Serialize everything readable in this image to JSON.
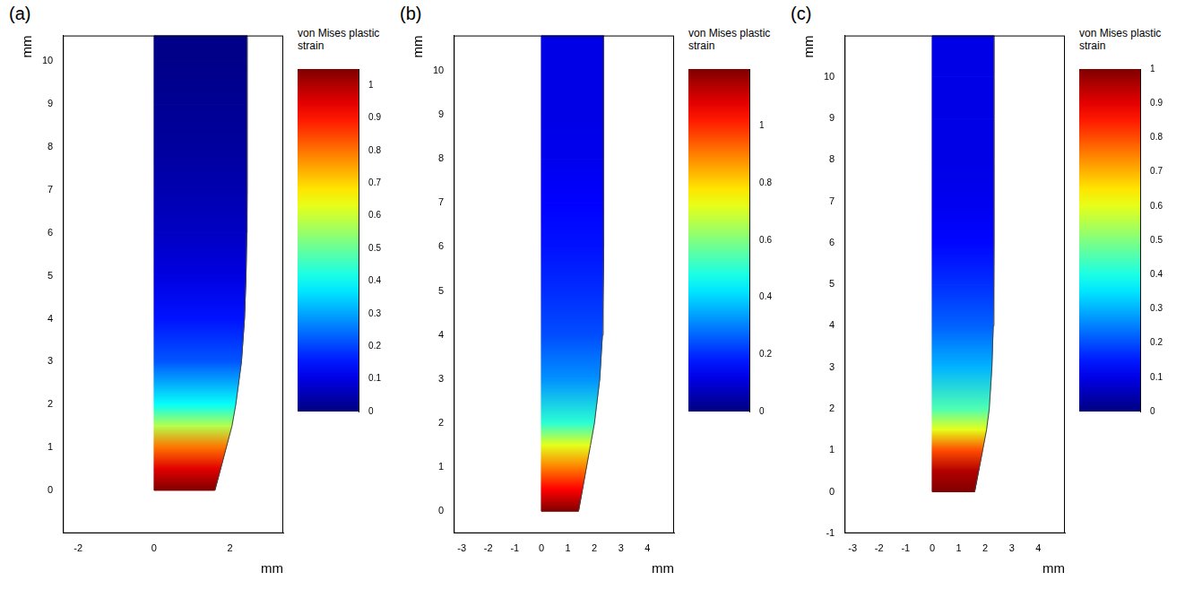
{
  "chart_data": [
    {
      "type": "contour",
      "title": "(a)",
      "x_label": "mm",
      "y_label": "mm",
      "xlim": [
        -2.4,
        3.4
      ],
      "xticks": [
        -2,
        0,
        2
      ],
      "ylim": [
        -1,
        10.6
      ],
      "yticks": [
        0,
        1,
        2,
        3,
        4,
        5,
        6,
        7,
        8,
        9,
        10
      ],
      "profile": {
        "y": [
          0,
          0.5,
          1,
          1.5,
          2,
          3,
          4,
          5,
          6,
          7,
          8,
          9,
          10,
          10.6
        ],
        "x": [
          1.6,
          1.75,
          1.9,
          2.05,
          2.15,
          2.3,
          2.38,
          2.42,
          2.44,
          2.45,
          2.45,
          2.45,
          2.45,
          2.45
        ]
      },
      "strain": [
        1.05,
        0.95,
        0.8,
        0.58,
        0.4,
        0.22,
        0.15,
        0.1,
        0.07,
        0.05,
        0.03,
        0.02,
        0.01,
        0.01
      ],
      "colorbar": {
        "title": "von Mises plastic strain",
        "range": [
          0,
          1.05
        ],
        "ticks": [
          0,
          0.1,
          0.2,
          0.3,
          0.4,
          0.5,
          0.6,
          0.7,
          0.8,
          0.9,
          1
        ]
      }
    },
    {
      "type": "contour",
      "title": "(b)",
      "x_label": "mm",
      "y_label": "mm",
      "xlim": [
        -3.3,
        5
      ],
      "xticks": [
        -3,
        -2,
        -1,
        0,
        1,
        2,
        3,
        4
      ],
      "ylim": [
        -0.5,
        10.8
      ],
      "yticks": [
        0,
        1,
        2,
        3,
        4,
        5,
        6,
        7,
        8,
        9,
        10
      ],
      "profile": {
        "y": [
          0,
          0.5,
          1,
          1.5,
          2,
          3,
          4,
          5,
          6,
          7,
          8,
          9,
          10,
          10.8
        ],
        "x": [
          1.4,
          1.55,
          1.7,
          1.85,
          2.0,
          2.2,
          2.3,
          2.33,
          2.35,
          2.35,
          2.35,
          2.35,
          2.35,
          2.35
        ]
      },
      "strain": [
        1.2,
        1.05,
        0.9,
        0.72,
        0.5,
        0.32,
        0.24,
        0.2,
        0.17,
        0.15,
        0.13,
        0.12,
        0.12,
        0.12
      ],
      "colorbar": {
        "title": "von Mises plastic strain",
        "range": [
          0,
          1.2
        ],
        "ticks": [
          0,
          0.2,
          0.4,
          0.6,
          0.8,
          1
        ]
      }
    },
    {
      "type": "contour",
      "title": "(c)",
      "x_label": "mm",
      "y_label": "mm",
      "xlim": [
        -3.3,
        5
      ],
      "xticks": [
        -3,
        -2,
        -1,
        0,
        1,
        2,
        3,
        4
      ],
      "ylim": [
        -1,
        11
      ],
      "yticks": [
        -1,
        0,
        1,
        2,
        3,
        4,
        5,
        6,
        7,
        8,
        9,
        10
      ],
      "profile": {
        "y": [
          0,
          0.5,
          1,
          1.5,
          2,
          3,
          4,
          5,
          6,
          7,
          8,
          9,
          10,
          11
        ],
        "x": [
          1.6,
          1.75,
          1.9,
          2.05,
          2.15,
          2.25,
          2.3,
          2.32,
          2.33,
          2.33,
          2.33,
          2.33,
          2.33,
          2.33
        ]
      },
      "strain": [
        1.0,
        0.95,
        0.8,
        0.6,
        0.45,
        0.3,
        0.22,
        0.17,
        0.13,
        0.11,
        0.1,
        0.1,
        0.1,
        0.1
      ],
      "colorbar": {
        "title": "von Mises plastic strain",
        "range": [
          0,
          1
        ],
        "ticks": [
          0,
          0.1,
          0.2,
          0.3,
          0.4,
          0.5,
          0.6,
          0.7,
          0.8,
          0.9,
          1
        ]
      }
    }
  ]
}
